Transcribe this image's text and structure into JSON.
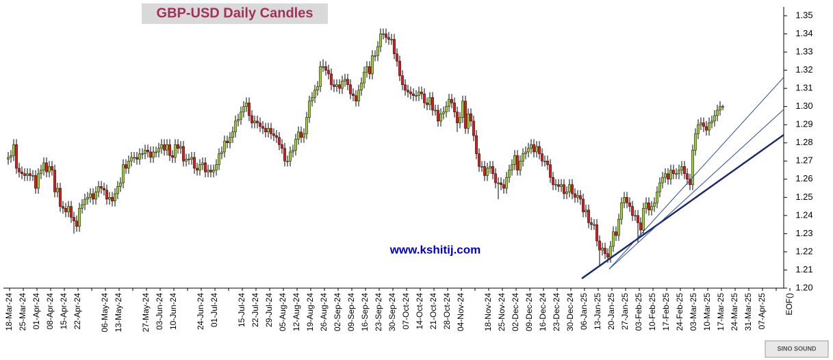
{
  "chart_data": {
    "type": "candlestick",
    "title": "GBP-USD Daily Candles",
    "watermark": "www.kshitij.com",
    "logo_text": "SINO SOUND",
    "up_color": "#9acd32",
    "down_color": "#e01818",
    "ylim": [
      1.2,
      1.35
    ],
    "yticks": [
      {
        "value": 1.2,
        "label": "1.20"
      },
      1.21,
      1.22,
      1.23,
      1.24,
      1.25,
      1.26,
      1.27,
      1.28,
      1.29,
      {
        "value": 1.3,
        "label": "1.30"
      },
      1.31,
      1.32,
      1.33,
      1.34,
      1.35
    ],
    "x_labels": [
      "18-Mar-24",
      "25-Mar-24",
      "01-Apr-24",
      "08-Apr-24",
      "15-Apr-24",
      "22-Apr-24",
      null,
      "06-May-24",
      "13-May-24",
      null,
      "27-May-24",
      "03-Jun-24",
      "10-Jun-24",
      null,
      "24-Jun-24",
      "01-Jul-24",
      null,
      "15-Jul-24",
      "22-Jul-24",
      "29-Jul-24",
      "05-Aug-24",
      "12-Aug-24",
      "19-Aug-24",
      "26-Aug-24",
      "02-Sep-24",
      "09-Sep-24",
      "16-Sep-24",
      "23-Sep-24",
      "30-Sep-24",
      "07-Oct-24",
      "14-Oct-24",
      "21-Oct-24",
      "28-Oct-24",
      "04-Nov-24",
      null,
      "18-Nov-24",
      "25-Nov-24",
      "02-Dec-24",
      "09-Dec-24",
      "16-Dec-24",
      "23-Dec-24",
      "30-Dec-24",
      "06-Jan-25",
      "13-Jan-25",
      "20-Jan-25",
      "27-Jan-25",
      "03-Feb-25",
      "10-Feb-25",
      "17-Feb-25",
      "24-Feb-25",
      "03-Mar-25",
      "10-Mar-25",
      "17-Mar-25",
      "24-Mar-25",
      "31-Mar-25",
      "07-Apr-25",
      null,
      "EOF()"
    ],
    "open": [
      1.271,
      1.272,
      1.273,
      1.279,
      1.266,
      1.264,
      1.263,
      1.262,
      1.263,
      1.262,
      1.262,
      1.255,
      1.263,
      1.265,
      1.269,
      1.264,
      1.267,
      1.265,
      1.253,
      1.255,
      1.245,
      1.244,
      1.242,
      1.245,
      1.239,
      1.237,
      1.234,
      1.244,
      1.246,
      1.249,
      1.25,
      1.252,
      1.249,
      1.253,
      1.256,
      1.255,
      1.254,
      1.249,
      1.25,
      1.248,
      1.252,
      1.256,
      1.258,
      1.268,
      1.266,
      1.27,
      1.272,
      1.272,
      1.271,
      1.274,
      1.274,
      1.276,
      1.275,
      1.272,
      1.275,
      1.275,
      1.277,
      1.279,
      1.276,
      1.279,
      1.273,
      1.272,
      1.279,
      1.277,
      1.278,
      1.27,
      1.271,
      1.271,
      1.272,
      1.266,
      1.265,
      1.268,
      1.269,
      1.264,
      1.265,
      1.264,
      1.265,
      1.268,
      1.274,
      1.275,
      1.281,
      1.28,
      1.283,
      1.286,
      1.292,
      1.293,
      1.297,
      1.3,
      1.302,
      1.295,
      1.291,
      1.292,
      1.291,
      1.289,
      1.288,
      1.286,
      1.288,
      1.285,
      1.284,
      1.283,
      1.279,
      1.277,
      1.27,
      1.27,
      1.275,
      1.276,
      1.282,
      1.286,
      1.283,
      1.285,
      1.294,
      1.303,
      1.305,
      1.309,
      1.311,
      1.322,
      1.322,
      1.32,
      1.318,
      1.312,
      1.311,
      1.312,
      1.31,
      1.314,
      1.315,
      1.312,
      1.307,
      1.306,
      1.303,
      1.309,
      1.313,
      1.319,
      1.322,
      1.318,
      1.328,
      1.328,
      1.333,
      1.34,
      1.34,
      1.338,
      1.337,
      1.337,
      1.329,
      1.325,
      1.317,
      1.312,
      1.309,
      1.308,
      1.307,
      1.306,
      1.306,
      1.308,
      1.307,
      1.302,
      1.301,
      1.305,
      1.298,
      1.298,
      1.292,
      1.296,
      1.297,
      1.3,
      1.304,
      1.302,
      1.297,
      1.291,
      1.294,
      1.303,
      1.288,
      1.296,
      1.292,
      1.284,
      1.274,
      1.267,
      1.267,
      1.262,
      1.266,
      1.267,
      1.263,
      1.258,
      1.258,
      1.257,
      1.255,
      1.261,
      1.265,
      1.268,
      1.273,
      1.265,
      1.27,
      1.274,
      1.275,
      1.277,
      1.279,
      1.275,
      1.278,
      1.274,
      1.27,
      1.27,
      1.268,
      1.261,
      1.257,
      1.257,
      1.256,
      1.257,
      1.252,
      1.253,
      1.257,
      1.252,
      1.25,
      1.251,
      1.249,
      1.242,
      1.243,
      1.236,
      1.235,
      1.235,
      1.226,
      1.221,
      1.222,
      1.219,
      1.217,
      1.223,
      1.231,
      1.229,
      1.238,
      1.247,
      1.25,
      1.247,
      1.245,
      1.24,
      1.24,
      1.236,
      1.232,
      1.244,
      1.247,
      1.243,
      1.245,
      1.247,
      1.253,
      1.258,
      1.261,
      1.263,
      1.26,
      1.265,
      1.263,
      1.263,
      1.265,
      1.267,
      1.263,
      1.26,
      1.257,
      1.276,
      1.285,
      1.29,
      1.291,
      1.289,
      1.287,
      1.291,
      1.292,
      1.295,
      1.298,
      1.3
    ],
    "high": [
      1.275,
      1.276,
      1.282,
      1.282,
      1.269,
      1.267,
      1.266,
      1.266,
      1.266,
      1.265,
      1.265,
      1.266,
      1.268,
      1.272,
      1.272,
      1.27,
      1.27,
      1.268,
      1.258,
      1.258,
      1.248,
      1.247,
      1.248,
      1.248,
      1.242,
      1.24,
      1.247,
      1.249,
      1.252,
      1.253,
      1.255,
      1.255,
      1.256,
      1.259,
      1.259,
      1.258,
      1.257,
      1.253,
      1.253,
      1.255,
      1.259,
      1.261,
      1.271,
      1.271,
      1.273,
      1.275,
      1.275,
      1.275,
      1.277,
      1.277,
      1.279,
      1.279,
      1.278,
      1.278,
      1.278,
      1.28,
      1.282,
      1.282,
      1.282,
      1.282,
      1.276,
      1.282,
      1.282,
      1.281,
      1.281,
      1.274,
      1.274,
      1.275,
      1.275,
      1.269,
      1.271,
      1.272,
      1.272,
      1.268,
      1.268,
      1.268,
      1.271,
      1.277,
      1.278,
      1.284,
      1.284,
      1.286,
      1.289,
      1.295,
      1.296,
      1.3,
      1.303,
      1.305,
      1.305,
      1.298,
      1.295,
      1.295,
      1.294,
      1.292,
      1.291,
      1.291,
      1.291,
      1.288,
      1.287,
      1.286,
      1.282,
      1.28,
      1.273,
      1.278,
      1.279,
      1.285,
      1.289,
      1.289,
      1.288,
      1.297,
      1.306,
      1.308,
      1.312,
      1.314,
      1.325,
      1.326,
      1.325,
      1.323,
      1.321,
      1.315,
      1.315,
      1.315,
      1.317,
      1.318,
      1.318,
      1.315,
      1.31,
      1.309,
      1.312,
      1.316,
      1.322,
      1.325,
      1.325,
      1.331,
      1.331,
      1.336,
      1.343,
      1.343,
      1.343,
      1.341,
      1.34,
      1.34,
      1.332,
      1.328,
      1.32,
      1.315,
      1.312,
      1.311,
      1.31,
      1.309,
      1.311,
      1.311,
      1.31,
      1.305,
      1.308,
      1.308,
      1.301,
      1.301,
      1.299,
      1.3,
      1.303,
      1.307,
      1.307,
      1.305,
      1.3,
      1.297,
      1.306,
      1.306,
      1.299,
      1.299,
      1.295,
      1.287,
      1.277,
      1.27,
      1.27,
      1.269,
      1.27,
      1.27,
      1.266,
      1.261,
      1.261,
      1.26,
      1.264,
      1.268,
      1.271,
      1.276,
      1.276,
      1.273,
      1.277,
      1.278,
      1.28,
      1.282,
      1.282,
      1.281,
      1.281,
      1.277,
      1.273,
      1.273,
      1.271,
      1.264,
      1.26,
      1.26,
      1.26,
      1.26,
      1.256,
      1.26,
      1.26,
      1.255,
      1.254,
      1.254,
      1.252,
      1.246,
      1.246,
      1.239,
      1.238,
      1.238,
      1.229,
      1.225,
      1.225,
      1.222,
      1.226,
      1.234,
      1.234,
      1.241,
      1.25,
      1.253,
      1.253,
      1.25,
      1.248,
      1.243,
      1.243,
      1.239,
      1.247,
      1.25,
      1.25,
      1.248,
      1.25,
      1.256,
      1.261,
      1.264,
      1.266,
      1.266,
      1.268,
      1.268,
      1.266,
      1.268,
      1.27,
      1.27,
      1.266,
      1.263,
      1.279,
      1.288,
      1.293,
      1.294,
      1.294,
      1.292,
      1.294,
      1.295,
      1.298,
      1.301,
      1.303,
      1.301
    ],
    "low": [
      1.268,
      1.269,
      1.27,
      1.263,
      1.261,
      1.26,
      1.259,
      1.259,
      1.259,
      1.259,
      1.252,
      1.252,
      1.26,
      1.262,
      1.261,
      1.261,
      1.262,
      1.25,
      1.25,
      1.242,
      1.241,
      1.239,
      1.239,
      1.236,
      1.23,
      1.231,
      1.231,
      1.241,
      1.243,
      1.246,
      1.247,
      1.246,
      1.246,
      1.25,
      1.252,
      1.251,
      1.246,
      1.246,
      1.245,
      1.245,
      1.249,
      1.253,
      1.255,
      1.263,
      1.263,
      1.267,
      1.269,
      1.268,
      1.268,
      1.271,
      1.271,
      1.272,
      1.269,
      1.269,
      1.272,
      1.272,
      1.274,
      1.273,
      1.273,
      1.27,
      1.269,
      1.269,
      1.274,
      1.274,
      1.267,
      1.267,
      1.268,
      1.268,
      1.263,
      1.262,
      1.262,
      1.265,
      1.261,
      1.261,
      1.261,
      1.261,
      1.262,
      1.265,
      1.271,
      1.272,
      1.277,
      1.277,
      1.28,
      1.283,
      1.289,
      1.29,
      1.294,
      1.297,
      1.292,
      1.288,
      1.288,
      1.288,
      1.286,
      1.285,
      1.283,
      1.283,
      1.282,
      1.281,
      1.28,
      1.276,
      1.274,
      1.267,
      1.267,
      1.267,
      1.272,
      1.273,
      1.279,
      1.28,
      1.28,
      1.282,
      1.291,
      1.3,
      1.302,
      1.306,
      1.308,
      1.319,
      1.317,
      1.315,
      1.309,
      1.308,
      1.308,
      1.307,
      1.307,
      1.311,
      1.309,
      1.304,
      1.303,
      1.3,
      1.3,
      1.306,
      1.31,
      1.316,
      1.315,
      1.315,
      1.325,
      1.325,
      1.33,
      1.337,
      1.335,
      1.334,
      1.334,
      1.326,
      1.322,
      1.314,
      1.309,
      1.306,
      1.305,
      1.304,
      1.303,
      1.303,
      1.303,
      1.304,
      1.299,
      1.298,
      1.298,
      1.295,
      1.295,
      1.289,
      1.289,
      1.293,
      1.294,
      1.297,
      1.299,
      1.294,
      1.286,
      1.288,
      1.291,
      1.285,
      1.285,
      1.289,
      1.281,
      1.271,
      1.264,
      1.264,
      1.259,
      1.259,
      1.263,
      1.26,
      1.255,
      1.249,
      1.254,
      1.252,
      1.252,
      1.258,
      1.262,
      1.265,
      1.262,
      1.262,
      1.267,
      1.271,
      1.272,
      1.274,
      1.272,
      1.272,
      1.271,
      1.267,
      1.267,
      1.265,
      1.258,
      1.254,
      1.254,
      1.253,
      1.253,
      1.249,
      1.249,
      1.25,
      1.249,
      1.247,
      1.247,
      1.246,
      1.239,
      1.239,
      1.233,
      1.232,
      1.232,
      1.223,
      1.212,
      1.218,
      1.216,
      1.214,
      1.214,
      1.22,
      1.226,
      1.226,
      1.235,
      1.244,
      1.244,
      1.242,
      1.237,
      1.237,
      1.225,
      1.229,
      1.229,
      1.241,
      1.24,
      1.24,
      1.242,
      1.244,
      1.25,
      1.255,
      1.258,
      1.257,
      1.257,
      1.26,
      1.26,
      1.26,
      1.262,
      1.26,
      1.257,
      1.254,
      1.254,
      1.273,
      1.282,
      1.287,
      1.286,
      1.284,
      1.284,
      1.288,
      1.289,
      1.292,
      1.295,
      1.298
    ],
    "close": [
      1.272,
      1.273,
      1.279,
      1.266,
      1.264,
      1.263,
      1.262,
      1.263,
      1.262,
      1.262,
      1.255,
      1.263,
      1.265,
      1.269,
      1.264,
      1.267,
      1.265,
      1.253,
      1.255,
      1.245,
      1.244,
      1.242,
      1.245,
      1.239,
      1.237,
      1.234,
      1.244,
      1.246,
      1.249,
      1.25,
      1.252,
      1.249,
      1.253,
      1.256,
      1.255,
      1.254,
      1.249,
      1.25,
      1.248,
      1.252,
      1.256,
      1.258,
      1.268,
      1.266,
      1.27,
      1.272,
      1.272,
      1.271,
      1.274,
      1.274,
      1.276,
      1.275,
      1.272,
      1.275,
      1.275,
      1.277,
      1.279,
      1.276,
      1.279,
      1.273,
      1.272,
      1.279,
      1.277,
      1.278,
      1.27,
      1.271,
      1.271,
      1.272,
      1.266,
      1.265,
      1.268,
      1.269,
      1.264,
      1.265,
      1.264,
      1.265,
      1.268,
      1.274,
      1.275,
      1.281,
      1.28,
      1.283,
      1.286,
      1.292,
      1.293,
      1.297,
      1.3,
      1.302,
      1.295,
      1.291,
      1.292,
      1.291,
      1.289,
      1.288,
      1.286,
      1.288,
      1.285,
      1.284,
      1.283,
      1.279,
      1.277,
      1.27,
      1.27,
      1.275,
      1.276,
      1.282,
      1.286,
      1.283,
      1.285,
      1.294,
      1.303,
      1.305,
      1.309,
      1.311,
      1.322,
      1.322,
      1.32,
      1.318,
      1.312,
      1.311,
      1.312,
      1.31,
      1.314,
      1.315,
      1.312,
      1.307,
      1.306,
      1.303,
      1.309,
      1.313,
      1.319,
      1.322,
      1.318,
      1.328,
      1.328,
      1.333,
      1.34,
      1.34,
      1.338,
      1.337,
      1.337,
      1.329,
      1.325,
      1.317,
      1.312,
      1.309,
      1.308,
      1.307,
      1.306,
      1.306,
      1.308,
      1.307,
      1.302,
      1.301,
      1.305,
      1.298,
      1.298,
      1.292,
      1.296,
      1.297,
      1.3,
      1.304,
      1.302,
      1.297,
      1.291,
      1.294,
      1.303,
      1.288,
      1.296,
      1.292,
      1.284,
      1.274,
      1.267,
      1.267,
      1.262,
      1.266,
      1.267,
      1.263,
      1.258,
      1.258,
      1.257,
      1.255,
      1.261,
      1.265,
      1.268,
      1.273,
      1.265,
      1.27,
      1.274,
      1.275,
      1.277,
      1.279,
      1.275,
      1.278,
      1.274,
      1.27,
      1.27,
      1.268,
      1.261,
      1.257,
      1.257,
      1.256,
      1.257,
      1.252,
      1.253,
      1.257,
      1.252,
      1.25,
      1.251,
      1.249,
      1.242,
      1.243,
      1.236,
      1.235,
      1.235,
      1.226,
      1.221,
      1.222,
      1.219,
      1.217,
      1.223,
      1.231,
      1.229,
      1.238,
      1.247,
      1.25,
      1.247,
      1.245,
      1.24,
      1.24,
      1.236,
      1.232,
      1.244,
      1.247,
      1.243,
      1.245,
      1.247,
      1.253,
      1.258,
      1.261,
      1.263,
      1.26,
      1.265,
      1.263,
      1.263,
      1.265,
      1.267,
      1.263,
      1.26,
      1.257,
      1.276,
      1.285,
      1.29,
      1.291,
      1.289,
      1.287,
      1.291,
      1.292,
      1.295,
      1.298,
      1.3,
      1.3
    ],
    "trendlines": [
      {
        "color": "#1a2a6c",
        "x": [
          209.5,
          283.25
        ],
        "y": [
          1.2053,
          1.2844
        ]
      },
      {
        "color": "#2a4aa0",
        "x": [
          219.5,
          283.25
        ],
        "y": [
          1.2105,
          1.3161
        ]
      },
      {
        "color": "#2a4aa0",
        "x": [
          219.5,
          283.25
        ],
        "y": [
          1.2105,
          1.2984
        ]
      }
    ]
  }
}
